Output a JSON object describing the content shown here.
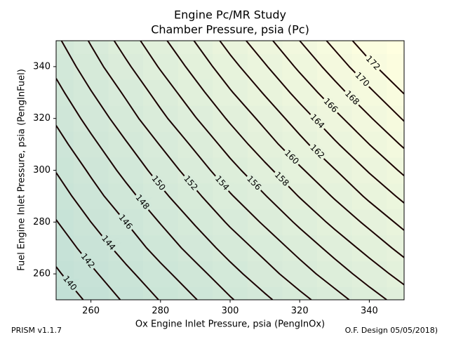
{
  "chart_data": {
    "type": "contour",
    "title": "Engine Pc/MR Study",
    "subtitle": "Chamber Pressure, psia (Pc)",
    "x_label": "Ox Engine Inlet Pressure, psia (PengInOx)",
    "y_label": "Fuel Engine Inlet Pressure, psia (PengInFuel)",
    "xlim": [
      250,
      350
    ],
    "ylim": [
      250,
      350
    ],
    "xticks": [
      260,
      280,
      300,
      320,
      340
    ],
    "yticks": [
      260,
      280,
      300,
      320,
      340
    ],
    "x": [
      250,
      260,
      270,
      280,
      290,
      300,
      310,
      320,
      330,
      340,
      350
    ],
    "y": [
      250,
      260,
      270,
      280,
      290,
      300,
      310,
      320,
      330,
      340,
      350
    ],
    "z": [
      [
        138.6,
        140.4,
        142.3,
        144.1,
        145.9,
        147.8,
        149.6,
        151.4,
        153.2,
        155.1,
        156.9
      ],
      [
        139.7,
        141.6,
        143.5,
        145.4,
        147.3,
        149.3,
        151.2,
        153.1,
        155.0,
        156.9,
        158.8
      ],
      [
        140.8,
        142.8,
        144.8,
        146.8,
        148.8,
        150.8,
        152.7,
        154.7,
        156.7,
        158.7,
        160.7
      ],
      [
        141.9,
        144.0,
        146.0,
        148.1,
        150.2,
        152.3,
        154.3,
        156.4,
        158.5,
        160.5,
        162.6
      ],
      [
        143.0,
        145.2,
        147.3,
        149.5,
        151.6,
        153.8,
        155.9,
        158.1,
        160.2,
        162.4,
        164.5
      ],
      [
        144.1,
        146.3,
        148.6,
        150.8,
        153.0,
        155.3,
        157.5,
        159.7,
        161.9,
        164.2,
        166.4
      ],
      [
        145.2,
        147.5,
        149.8,
        152.1,
        154.4,
        156.8,
        159.1,
        161.4,
        163.7,
        166.0,
        168.3
      ],
      [
        146.3,
        148.7,
        151.1,
        153.5,
        155.9,
        158.3,
        160.6,
        163.0,
        165.4,
        167.8,
        170.2
      ],
      [
        147.4,
        149.9,
        152.3,
        154.8,
        157.3,
        159.8,
        162.2,
        164.7,
        167.2,
        169.6,
        172.1
      ],
      [
        148.5,
        151.1,
        153.6,
        156.2,
        158.7,
        161.3,
        163.8,
        166.4,
        168.9,
        171.5,
        174.0
      ],
      [
        149.6,
        152.2,
        154.9,
        157.5,
        160.1,
        162.8,
        165.4,
        168.0,
        170.6,
        173.3,
        175.9
      ]
    ],
    "levels": [
      140,
      142,
      144,
      146,
      148,
      150,
      152,
      154,
      156,
      158,
      160,
      162,
      164,
      166,
      168,
      170,
      172
    ],
    "line_color": "#1a0000",
    "colormap": [
      "#c2e0d6",
      "#ffffe0"
    ]
  },
  "footer": {
    "left": "PRISM v1.1.7",
    "right": "O.F. Design 05/05/2018)"
  }
}
